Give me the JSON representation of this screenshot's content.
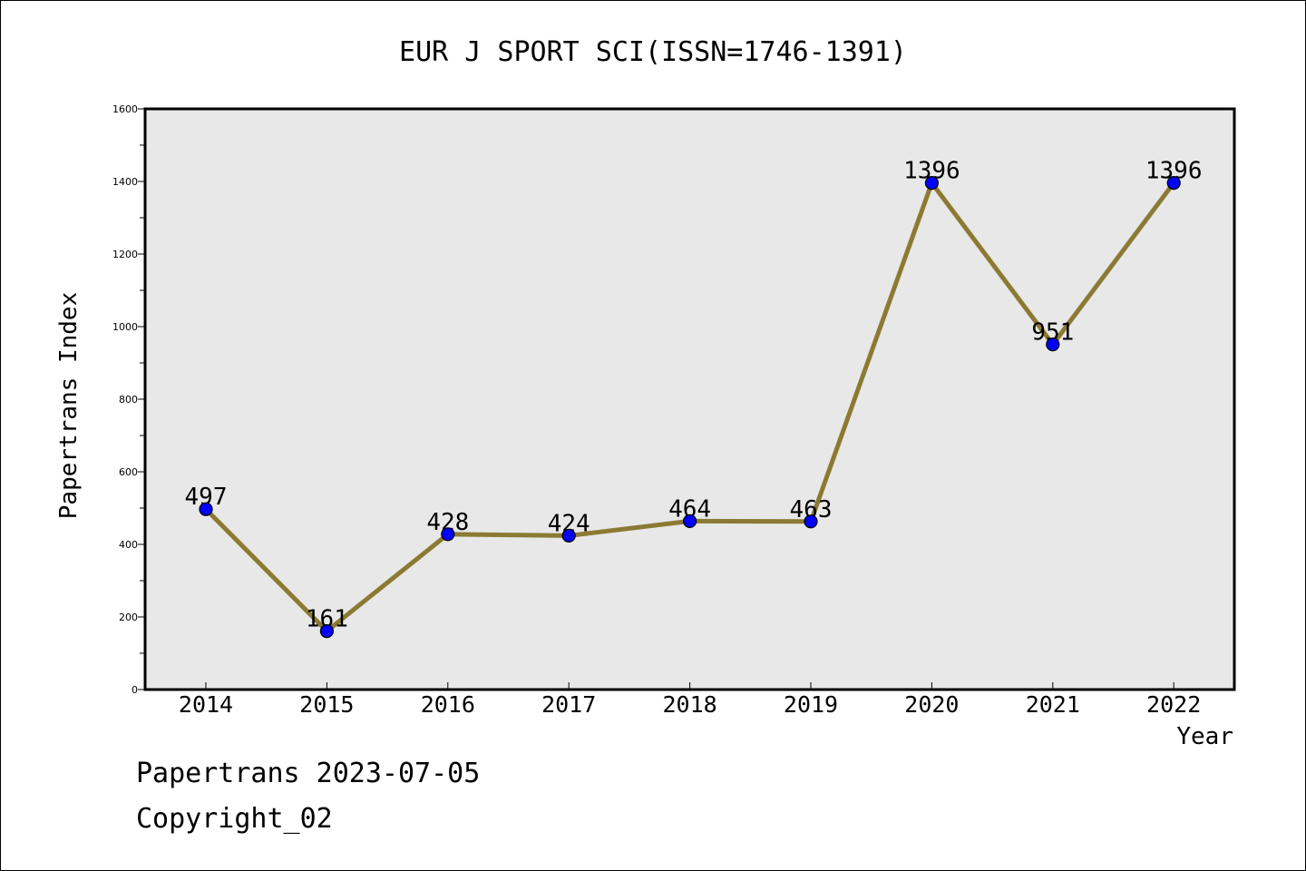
{
  "footer": {
    "line1": "Papertrans 2023-07-05",
    "line2": "Copyright_02"
  },
  "chart_data": {
    "type": "line",
    "title": "EUR J SPORT SCI(ISSN=1746-1391)",
    "xlabel": "Year",
    "ylabel": "Papertrans Index",
    "x": [
      "2014",
      "2015",
      "2016",
      "2017",
      "2018",
      "2019",
      "2020",
      "2021",
      "2022"
    ],
    "series": [
      {
        "values": [
          497,
          161,
          428,
          424,
          464,
          463,
          1396,
          951,
          1396
        ],
        "labels": [
          "497",
          "161",
          "428",
          "424",
          "464",
          "463",
          "1396",
          "951",
          "1396"
        ]
      }
    ],
    "ylim": [
      0,
      1600
    ],
    "yticks": [
      0,
      200,
      400,
      600,
      800,
      1000,
      1200,
      1400,
      1600
    ],
    "grid": false,
    "colors": {
      "line": "#8b7a32",
      "marker": "#0000ff",
      "plot_background": "#e8e8e8"
    }
  }
}
